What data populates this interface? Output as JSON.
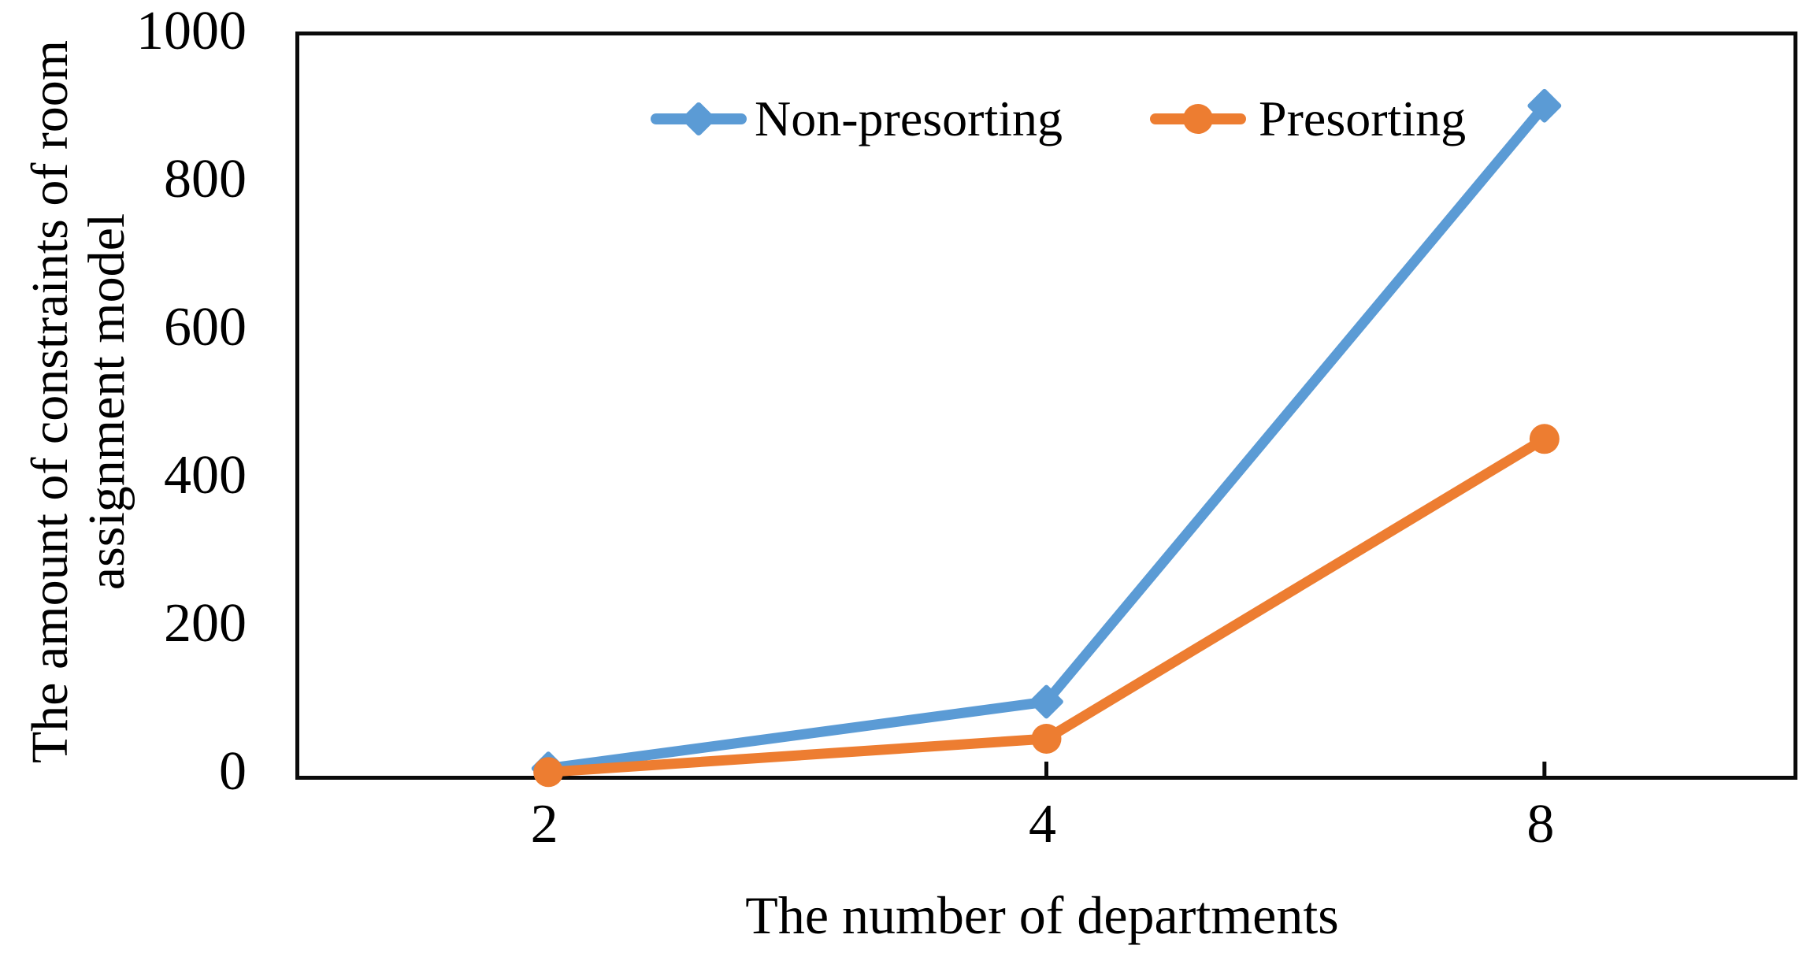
{
  "figure": {
    "background": "#ffffff",
    "axis_color": "#0a0a0a",
    "text_color": "#000000"
  },
  "chart_data": {
    "type": "line",
    "title": "",
    "xlabel": "The number of departments",
    "ylabel": "The amount of constraints of room assignment model",
    "ylabel_lines": [
      "The amount of constraints of room",
      "assignment model"
    ],
    "categories": [
      "2",
      "4",
      "8"
    ],
    "series": [
      {
        "name": "Non-presorting",
        "color": "#5B9BD5",
        "marker": "diamond",
        "values": [
          10,
          100,
          905
        ]
      },
      {
        "name": "Presorting",
        "color": "#ED7D31",
        "marker": "circle",
        "values": [
          5,
          50,
          455
        ]
      }
    ],
    "ylim": [
      0,
      1000
    ],
    "yticks": [
      0,
      200,
      400,
      600,
      800,
      1000
    ],
    "grid": false,
    "legend_position": "top-left-inside",
    "tick_style": "inward"
  }
}
